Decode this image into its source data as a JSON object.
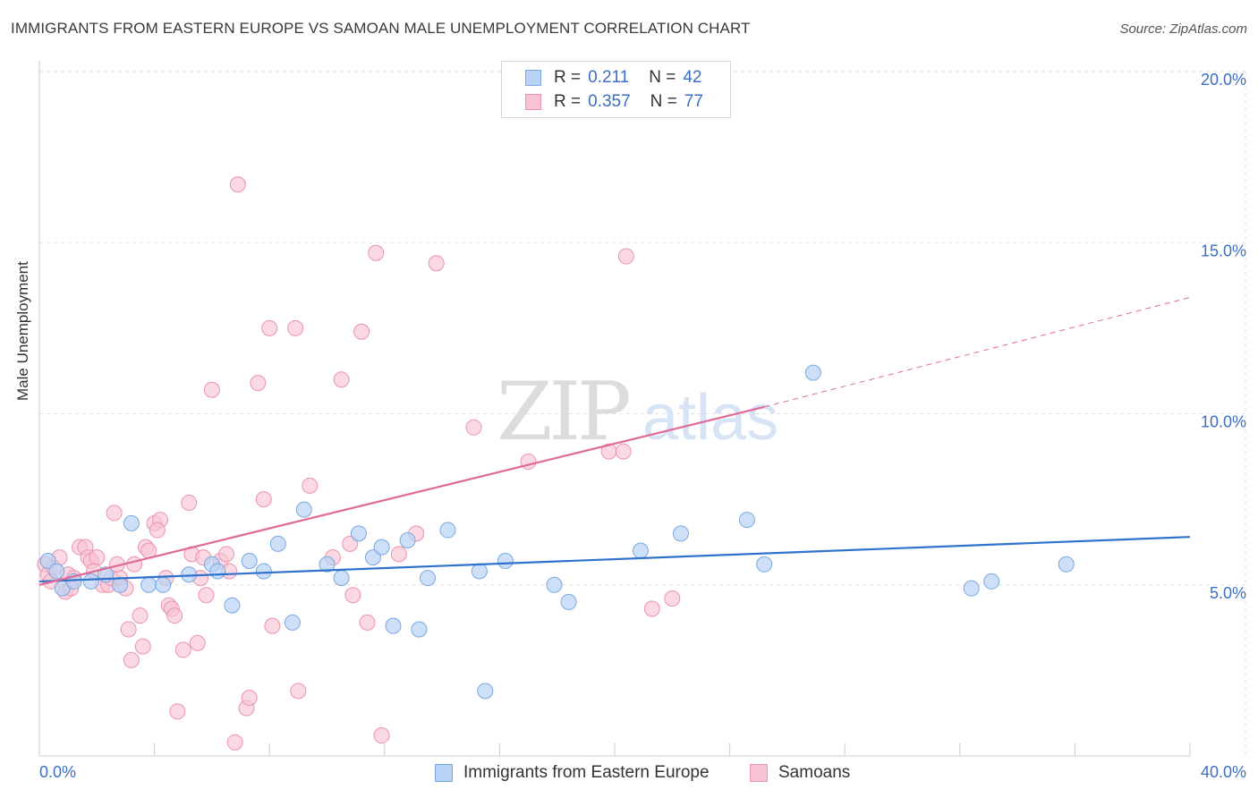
{
  "title": "IMMIGRANTS FROM EASTERN EUROPE VS SAMOAN MALE UNEMPLOYMENT CORRELATION CHART",
  "source": "Source: ZipAtlas.com",
  "watermark": {
    "zip": "ZIP",
    "atlas": "atlas"
  },
  "legend": {
    "series1": {
      "r_label": "R =",
      "r_value": "0.211",
      "n_label": "N =",
      "n_value": "42"
    },
    "series2": {
      "r_label": "R =",
      "r_value": "0.357",
      "n_label": "N =",
      "n_value": "77"
    }
  },
  "colors": {
    "blue_fill": "#b8d3f5",
    "blue_stroke": "#7aa8e0",
    "blue_line": "#2f72cc",
    "pink_fill": "#f8c4d4",
    "pink_stroke": "#ec93b0",
    "pink_line": "#e06a96",
    "grid": "#e3e3e3",
    "axis_text": "#3b6fc4"
  },
  "chart_data": {
    "type": "scatter",
    "title": "IMMIGRANTS FROM EASTERN EUROPE VS SAMOAN MALE UNEMPLOYMENT CORRELATION CHART",
    "xlabel": "",
    "ylabel": "Male Unemployment",
    "xlim": [
      0,
      40
    ],
    "ylim": [
      0,
      20
    ],
    "x_tick_labels": [
      "0.0%",
      "40.0%"
    ],
    "y_ticks": [
      5,
      10,
      15,
      20
    ],
    "y_tick_labels": [
      "5.0%",
      "10.0%",
      "15.0%",
      "20.0%"
    ],
    "legend_position": "top-center",
    "series": [
      {
        "name": "Immigrants from Eastern Europe",
        "color": "#b8d3f5",
        "trend": {
          "x0": 0,
          "y0": 5.1,
          "x1": 40,
          "y1": 6.4
        },
        "points": [
          [
            0.3,
            5.7
          ],
          [
            0.6,
            5.4
          ],
          [
            0.8,
            4.9
          ],
          [
            1.2,
            5.1
          ],
          [
            1.8,
            5.1
          ],
          [
            2.3,
            5.3
          ],
          [
            2.8,
            5.0
          ],
          [
            3.2,
            6.8
          ],
          [
            3.8,
            5.0
          ],
          [
            4.3,
            5.0
          ],
          [
            5.2,
            5.3
          ],
          [
            6.0,
            5.6
          ],
          [
            6.2,
            5.4
          ],
          [
            6.7,
            4.4
          ],
          [
            7.3,
            5.7
          ],
          [
            7.8,
            5.4
          ],
          [
            8.3,
            6.2
          ],
          [
            8.8,
            3.9
          ],
          [
            9.2,
            7.2
          ],
          [
            10.0,
            5.6
          ],
          [
            10.5,
            5.2
          ],
          [
            11.1,
            6.5
          ],
          [
            11.6,
            5.8
          ],
          [
            11.9,
            6.1
          ],
          [
            12.3,
            3.8
          ],
          [
            12.8,
            6.3
          ],
          [
            13.2,
            3.7
          ],
          [
            13.5,
            5.2
          ],
          [
            14.2,
            6.6
          ],
          [
            15.3,
            5.4
          ],
          [
            15.5,
            1.9
          ],
          [
            16.2,
            5.7
          ],
          [
            17.9,
            5.0
          ],
          [
            18.4,
            4.5
          ],
          [
            20.9,
            6.0
          ],
          [
            22.3,
            6.5
          ],
          [
            24.6,
            6.9
          ],
          [
            25.2,
            5.6
          ],
          [
            26.9,
            11.2
          ],
          [
            32.4,
            4.9
          ],
          [
            33.1,
            5.1
          ],
          [
            35.7,
            5.6
          ]
        ]
      },
      {
        "name": "Samoans",
        "color": "#f8c4d4",
        "trend": {
          "x0": 0,
          "y0": 5.0,
          "x1": 25.2,
          "y1": 10.2,
          "dash_x1": 40,
          "dash_y1": 13.4
        },
        "points": [
          [
            0.2,
            5.6
          ],
          [
            0.3,
            5.3
          ],
          [
            0.5,
            5.5
          ],
          [
            0.7,
            5.8
          ],
          [
            0.9,
            4.8
          ],
          [
            1.0,
            5.3
          ],
          [
            1.2,
            5.2
          ],
          [
            1.4,
            6.1
          ],
          [
            1.6,
            6.1
          ],
          [
            1.7,
            5.8
          ],
          [
            1.8,
            5.7
          ],
          [
            2.0,
            5.8
          ],
          [
            2.2,
            5.0
          ],
          [
            2.4,
            5.0
          ],
          [
            2.5,
            5.2
          ],
          [
            2.6,
            7.1
          ],
          [
            2.8,
            5.2
          ],
          [
            3.0,
            4.9
          ],
          [
            3.1,
            3.7
          ],
          [
            3.2,
            2.8
          ],
          [
            3.3,
            5.6
          ],
          [
            3.5,
            4.1
          ],
          [
            3.6,
            3.2
          ],
          [
            3.7,
            6.1
          ],
          [
            3.8,
            6.0
          ],
          [
            4.0,
            6.8
          ],
          [
            4.2,
            6.9
          ],
          [
            4.4,
            5.2
          ],
          [
            4.5,
            4.4
          ],
          [
            4.6,
            4.3
          ],
          [
            4.7,
            4.1
          ],
          [
            4.8,
            1.3
          ],
          [
            5.0,
            3.1
          ],
          [
            5.2,
            7.4
          ],
          [
            5.3,
            5.9
          ],
          [
            5.5,
            3.3
          ],
          [
            5.6,
            5.2
          ],
          [
            5.8,
            4.7
          ],
          [
            6.0,
            10.7
          ],
          [
            6.3,
            5.7
          ],
          [
            6.5,
            5.9
          ],
          [
            6.8,
            0.4
          ],
          [
            6.9,
            16.7
          ],
          [
            7.2,
            1.4
          ],
          [
            7.3,
            1.7
          ],
          [
            7.6,
            10.9
          ],
          [
            7.8,
            7.5
          ],
          [
            8.0,
            12.5
          ],
          [
            8.1,
            3.8
          ],
          [
            8.9,
            12.5
          ],
          [
            9.0,
            1.9
          ],
          [
            9.4,
            7.9
          ],
          [
            10.2,
            5.8
          ],
          [
            10.5,
            11.0
          ],
          [
            10.9,
            4.7
          ],
          [
            11.2,
            12.4
          ],
          [
            11.4,
            3.9
          ],
          [
            11.7,
            14.7
          ],
          [
            11.9,
            0.6
          ],
          [
            13.1,
            6.5
          ],
          [
            13.8,
            14.4
          ],
          [
            15.1,
            9.6
          ],
          [
            17.0,
            8.6
          ],
          [
            19.8,
            8.9
          ],
          [
            20.3,
            8.9
          ],
          [
            20.4,
            14.6
          ],
          [
            21.3,
            4.3
          ],
          [
            22.0,
            4.6
          ],
          [
            0.4,
            5.1
          ],
          [
            1.1,
            4.9
          ],
          [
            1.9,
            5.4
          ],
          [
            2.7,
            5.6
          ],
          [
            4.1,
            6.6
          ],
          [
            5.7,
            5.8
          ],
          [
            6.6,
            5.4
          ],
          [
            10.8,
            6.2
          ],
          [
            12.5,
            5.9
          ]
        ]
      }
    ]
  }
}
